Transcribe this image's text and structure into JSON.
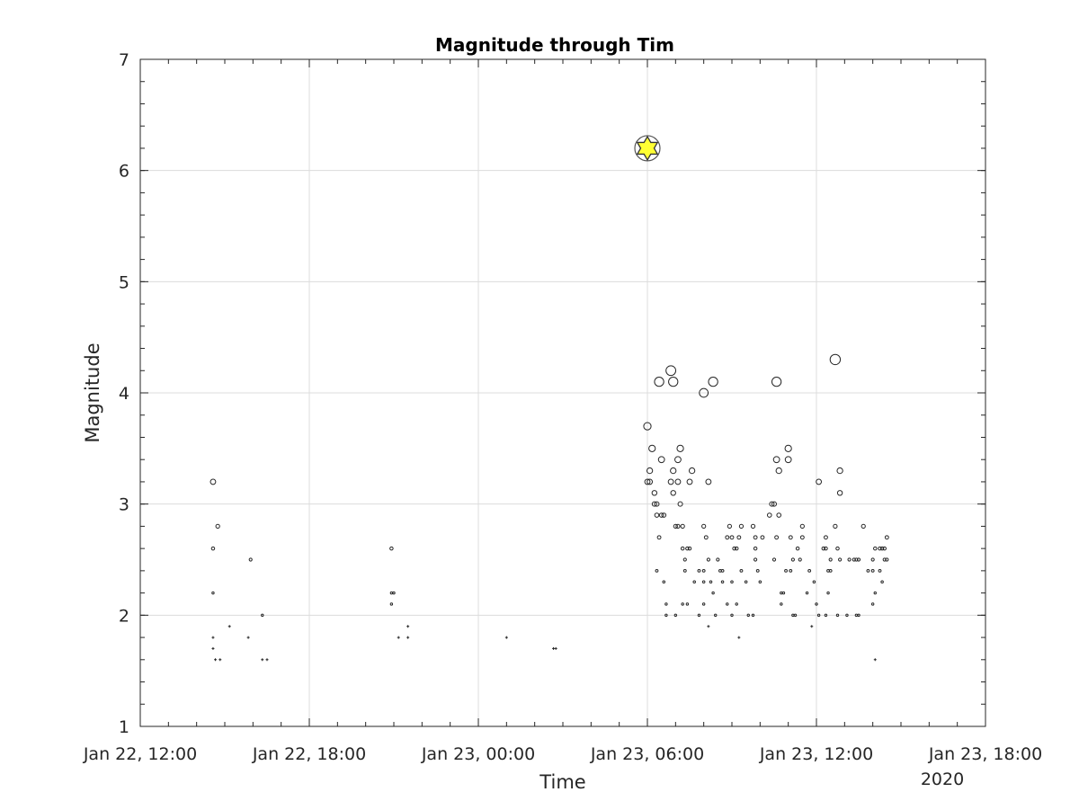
{
  "chart_data": {
    "type": "scatter",
    "title": "Magnitude through Tim",
    "xlabel": "Time",
    "ylabel": "Magnitude",
    "x_ticks": [
      "Jan 22, 12:00",
      "Jan 22, 18:00",
      "Jan 23, 00:00",
      "Jan 23, 06:00",
      "Jan 23, 12:00",
      "Jan 23, 18:00"
    ],
    "x_secondary_label": "2020",
    "x_range": [
      "2020-01-22 12:00",
      "2020-01-23 18:00"
    ],
    "y_ticks": [
      "1",
      "2",
      "3",
      "4",
      "5",
      "6",
      "7"
    ],
    "ylim": [
      1,
      7
    ],
    "grid": true,
    "marker_color": "#262626",
    "highlight_color": "#ffff33",
    "mainshock": {
      "time": "2020-01-23 06:00",
      "magnitude": 6.2
    },
    "points": [
      {
        "t": "2020-01-22 14:35",
        "m": 3.2
      },
      {
        "t": "2020-01-22 14:45",
        "m": 2.8
      },
      {
        "t": "2020-01-22 14:35",
        "m": 2.6
      },
      {
        "t": "2020-01-22 14:35",
        "m": 2.2
      },
      {
        "t": "2020-01-22 14:35",
        "m": 1.8
      },
      {
        "t": "2020-01-22 14:35",
        "m": 1.7
      },
      {
        "t": "2020-01-22 14:40",
        "m": 1.6
      },
      {
        "t": "2020-01-22 14:50",
        "m": 1.6
      },
      {
        "t": "2020-01-22 15:10",
        "m": 1.9
      },
      {
        "t": "2020-01-22 15:50",
        "m": 1.8
      },
      {
        "t": "2020-01-22 15:55",
        "m": 2.5
      },
      {
        "t": "2020-01-22 16:20",
        "m": 2.0
      },
      {
        "t": "2020-01-22 16:20",
        "m": 1.6
      },
      {
        "t": "2020-01-22 16:30",
        "m": 1.6
      },
      {
        "t": "2020-01-22 20:55",
        "m": 2.6
      },
      {
        "t": "2020-01-22 20:55",
        "m": 2.2
      },
      {
        "t": "2020-01-22 21:00",
        "m": 2.2
      },
      {
        "t": "2020-01-22 20:55",
        "m": 2.1
      },
      {
        "t": "2020-01-22 21:10",
        "m": 1.8
      },
      {
        "t": "2020-01-22 21:30",
        "m": 1.9
      },
      {
        "t": "2020-01-22 21:30",
        "m": 1.8
      },
      {
        "t": "2020-01-23 01:00",
        "m": 1.8
      },
      {
        "t": "2020-01-23 02:40",
        "m": 1.7
      },
      {
        "t": "2020-01-23 02:45",
        "m": 1.7
      },
      {
        "t": "2020-01-23 06:00",
        "m": 3.7
      },
      {
        "t": "2020-01-23 06:05",
        "m": 3.3
      },
      {
        "t": "2020-01-23 06:05",
        "m": 3.2
      },
      {
        "t": "2020-01-23 06:00",
        "m": 3.2
      },
      {
        "t": "2020-01-23 06:10",
        "m": 3.5
      },
      {
        "t": "2020-01-23 06:15",
        "m": 3.1
      },
      {
        "t": "2020-01-23 06:15",
        "m": 3.0
      },
      {
        "t": "2020-01-23 06:20",
        "m": 3.0
      },
      {
        "t": "2020-01-23 06:20",
        "m": 2.9
      },
      {
        "t": "2020-01-23 06:25",
        "m": 4.1
      },
      {
        "t": "2020-01-23 06:30",
        "m": 3.4
      },
      {
        "t": "2020-01-23 06:30",
        "m": 2.9
      },
      {
        "t": "2020-01-23 06:35",
        "m": 2.9
      },
      {
        "t": "2020-01-23 06:25",
        "m": 2.7
      },
      {
        "t": "2020-01-23 06:20",
        "m": 2.4
      },
      {
        "t": "2020-01-23 06:35",
        "m": 2.3
      },
      {
        "t": "2020-01-23 06:40",
        "m": 2.1
      },
      {
        "t": "2020-01-23 06:40",
        "m": 2.0
      },
      {
        "t": "2020-01-23 06:50",
        "m": 4.2
      },
      {
        "t": "2020-01-23 06:55",
        "m": 4.1
      },
      {
        "t": "2020-01-23 06:50",
        "m": 3.2
      },
      {
        "t": "2020-01-23 06:55",
        "m": 3.1
      },
      {
        "t": "2020-01-23 06:55",
        "m": 3.3
      },
      {
        "t": "2020-01-23 07:00",
        "m": 2.8
      },
      {
        "t": "2020-01-23 07:05",
        "m": 2.8
      },
      {
        "t": "2020-01-23 07:05",
        "m": 3.4
      },
      {
        "t": "2020-01-23 07:10",
        "m": 3.5
      },
      {
        "t": "2020-01-23 07:05",
        "m": 3.2
      },
      {
        "t": "2020-01-23 07:10",
        "m": 3.0
      },
      {
        "t": "2020-01-23 07:15",
        "m": 2.8
      },
      {
        "t": "2020-01-23 07:15",
        "m": 2.6
      },
      {
        "t": "2020-01-23 07:20",
        "m": 2.5
      },
      {
        "t": "2020-01-23 07:20",
        "m": 2.4
      },
      {
        "t": "2020-01-23 07:25",
        "m": 2.6
      },
      {
        "t": "2020-01-23 07:30",
        "m": 2.6
      },
      {
        "t": "2020-01-23 07:30",
        "m": 3.2
      },
      {
        "t": "2020-01-23 07:35",
        "m": 3.3
      },
      {
        "t": "2020-01-23 07:40",
        "m": 2.3
      },
      {
        "t": "2020-01-23 07:00",
        "m": 2.0
      },
      {
        "t": "2020-01-23 07:15",
        "m": 2.1
      },
      {
        "t": "2020-01-23 07:25",
        "m": 2.1
      },
      {
        "t": "2020-01-23 08:00",
        "m": 4.0
      },
      {
        "t": "2020-01-23 08:20",
        "m": 4.1
      },
      {
        "t": "2020-01-23 08:10",
        "m": 3.2
      },
      {
        "t": "2020-01-23 08:00",
        "m": 2.8
      },
      {
        "t": "2020-01-23 08:05",
        "m": 2.7
      },
      {
        "t": "2020-01-23 07:50",
        "m": 2.4
      },
      {
        "t": "2020-01-23 08:00",
        "m": 2.4
      },
      {
        "t": "2020-01-23 08:10",
        "m": 2.5
      },
      {
        "t": "2020-01-23 08:00",
        "m": 2.3
      },
      {
        "t": "2020-01-23 08:15",
        "m": 2.3
      },
      {
        "t": "2020-01-23 07:50",
        "m": 2.0
      },
      {
        "t": "2020-01-23 08:00",
        "m": 2.1
      },
      {
        "t": "2020-01-23 08:10",
        "m": 1.9
      },
      {
        "t": "2020-01-23 08:25",
        "m": 2.0
      },
      {
        "t": "2020-01-23 08:20",
        "m": 2.2
      },
      {
        "t": "2020-01-23 08:30",
        "m": 2.5
      },
      {
        "t": "2020-01-23 08:35",
        "m": 2.4
      },
      {
        "t": "2020-01-23 08:40",
        "m": 2.4
      },
      {
        "t": "2020-01-23 08:40",
        "m": 2.3
      },
      {
        "t": "2020-01-23 08:50",
        "m": 2.7
      },
      {
        "t": "2020-01-23 08:55",
        "m": 2.8
      },
      {
        "t": "2020-01-23 09:00",
        "m": 2.7
      },
      {
        "t": "2020-01-23 09:05",
        "m": 2.6
      },
      {
        "t": "2020-01-23 09:10",
        "m": 2.6
      },
      {
        "t": "2020-01-23 09:15",
        "m": 2.7
      },
      {
        "t": "2020-01-23 09:20",
        "m": 2.8
      },
      {
        "t": "2020-01-23 08:50",
        "m": 2.1
      },
      {
        "t": "2020-01-23 09:00",
        "m": 2.0
      },
      {
        "t": "2020-01-23 09:10",
        "m": 2.1
      },
      {
        "t": "2020-01-23 09:15",
        "m": 1.8
      },
      {
        "t": "2020-01-23 09:00",
        "m": 2.3
      },
      {
        "t": "2020-01-23 09:20",
        "m": 2.4
      },
      {
        "t": "2020-01-23 09:30",
        "m": 2.3
      },
      {
        "t": "2020-01-23 09:35",
        "m": 2.0
      },
      {
        "t": "2020-01-23 09:45",
        "m": 2.8
      },
      {
        "t": "2020-01-23 09:50",
        "m": 2.6
      },
      {
        "t": "2020-01-23 09:50",
        "m": 2.7
      },
      {
        "t": "2020-01-23 09:50",
        "m": 2.5
      },
      {
        "t": "2020-01-23 09:55",
        "m": 2.4
      },
      {
        "t": "2020-01-23 10:00",
        "m": 2.3
      },
      {
        "t": "2020-01-23 10:05",
        "m": 2.7
      },
      {
        "t": "2020-01-23 09:45",
        "m": 2.0
      },
      {
        "t": "2020-01-23 10:20",
        "m": 2.9
      },
      {
        "t": "2020-01-23 10:25",
        "m": 3.0
      },
      {
        "t": "2020-01-23 10:30",
        "m": 3.0
      },
      {
        "t": "2020-01-23 10:35",
        "m": 4.1
      },
      {
        "t": "2020-01-23 10:35",
        "m": 3.4
      },
      {
        "t": "2020-01-23 10:40",
        "m": 3.3
      },
      {
        "t": "2020-01-23 10:40",
        "m": 2.9
      },
      {
        "t": "2020-01-23 10:35",
        "m": 2.7
      },
      {
        "t": "2020-01-23 10:30",
        "m": 2.5
      },
      {
        "t": "2020-01-23 10:45",
        "m": 2.2
      },
      {
        "t": "2020-01-23 10:50",
        "m": 2.2
      },
      {
        "t": "2020-01-23 10:45",
        "m": 2.1
      },
      {
        "t": "2020-01-23 10:55",
        "m": 2.4
      },
      {
        "t": "2020-01-23 11:00",
        "m": 3.5
      },
      {
        "t": "2020-01-23 11:00",
        "m": 3.4
      },
      {
        "t": "2020-01-23 11:05",
        "m": 2.7
      },
      {
        "t": "2020-01-23 11:05",
        "m": 2.4
      },
      {
        "t": "2020-01-23 11:10",
        "m": 2.5
      },
      {
        "t": "2020-01-23 11:10",
        "m": 2.0
      },
      {
        "t": "2020-01-23 11:15",
        "m": 2.0
      },
      {
        "t": "2020-01-23 11:20",
        "m": 2.6
      },
      {
        "t": "2020-01-23 11:25",
        "m": 2.5
      },
      {
        "t": "2020-01-23 11:30",
        "m": 2.8
      },
      {
        "t": "2020-01-23 11:30",
        "m": 2.7
      },
      {
        "t": "2020-01-23 11:40",
        "m": 2.2
      },
      {
        "t": "2020-01-23 11:45",
        "m": 2.4
      },
      {
        "t": "2020-01-23 11:50",
        "m": 1.9
      },
      {
        "t": "2020-01-23 11:55",
        "m": 2.3
      },
      {
        "t": "2020-01-23 12:00",
        "m": 2.1
      },
      {
        "t": "2020-01-23 12:05",
        "m": 2.0
      },
      {
        "t": "2020-01-23 12:05",
        "m": 3.2
      },
      {
        "t": "2020-01-23 12:15",
        "m": 2.6
      },
      {
        "t": "2020-01-23 12:20",
        "m": 2.6
      },
      {
        "t": "2020-01-23 12:20",
        "m": 2.7
      },
      {
        "t": "2020-01-23 12:25",
        "m": 2.4
      },
      {
        "t": "2020-01-23 12:30",
        "m": 2.4
      },
      {
        "t": "2020-01-23 12:30",
        "m": 2.5
      },
      {
        "t": "2020-01-23 12:25",
        "m": 2.2
      },
      {
        "t": "2020-01-23 12:20",
        "m": 2.0
      },
      {
        "t": "2020-01-23 12:40",
        "m": 4.3
      },
      {
        "t": "2020-01-23 12:40",
        "m": 2.8
      },
      {
        "t": "2020-01-23 12:45",
        "m": 2.6
      },
      {
        "t": "2020-01-23 12:50",
        "m": 3.3
      },
      {
        "t": "2020-01-23 12:50",
        "m": 3.1
      },
      {
        "t": "2020-01-23 12:50",
        "m": 2.5
      },
      {
        "t": "2020-01-23 12:45",
        "m": 2.0
      },
      {
        "t": "2020-01-23 13:10",
        "m": 2.5
      },
      {
        "t": "2020-01-23 13:05",
        "m": 2.0
      },
      {
        "t": "2020-01-23 13:20",
        "m": 2.5
      },
      {
        "t": "2020-01-23 13:25",
        "m": 2.5
      },
      {
        "t": "2020-01-23 13:30",
        "m": 2.5
      },
      {
        "t": "2020-01-23 13:25",
        "m": 2.0
      },
      {
        "t": "2020-01-23 13:30",
        "m": 2.0
      },
      {
        "t": "2020-01-23 13:40",
        "m": 2.8
      },
      {
        "t": "2020-01-23 13:50",
        "m": 2.4
      },
      {
        "t": "2020-01-23 14:00",
        "m": 2.5
      },
      {
        "t": "2020-01-23 14:00",
        "m": 2.4
      },
      {
        "t": "2020-01-23 14:00",
        "m": 2.1
      },
      {
        "t": "2020-01-23 14:05",
        "m": 1.6
      },
      {
        "t": "2020-01-23 14:05",
        "m": 2.6
      },
      {
        "t": "2020-01-23 14:05",
        "m": 2.2
      },
      {
        "t": "2020-01-23 14:15",
        "m": 2.6
      },
      {
        "t": "2020-01-23 14:15",
        "m": 2.4
      },
      {
        "t": "2020-01-23 14:20",
        "m": 2.6
      },
      {
        "t": "2020-01-23 14:20",
        "m": 2.3
      },
      {
        "t": "2020-01-23 14:25",
        "m": 2.6
      },
      {
        "t": "2020-01-23 14:25",
        "m": 2.5
      },
      {
        "t": "2020-01-23 14:30",
        "m": 2.5
      },
      {
        "t": "2020-01-23 14:30",
        "m": 2.7
      }
    ]
  }
}
